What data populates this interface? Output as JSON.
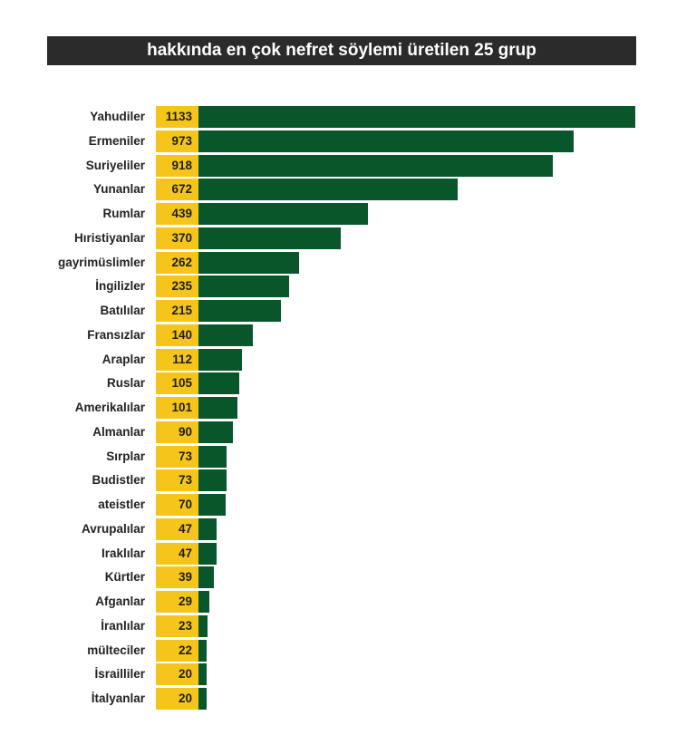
{
  "chart_data": {
    "type": "bar",
    "orientation": "horizontal",
    "title": "hakkında en çok nefret söylemi üretilen 25 grup",
    "categories": [
      "Yahudiler",
      "Ermeniler",
      "Suriyeliler",
      "Yunanlar",
      "Rumlar",
      "Hıristiyanlar",
      "gayrimüslimler",
      "İngilizler",
      "Batılılar",
      "Fransızlar",
      "Araplar",
      "Ruslar",
      "Amerikalılar",
      "Almanlar",
      "Sırplar",
      "Budistler",
      "ateistler",
      "Avrupalılar",
      "Iraklılar",
      "Kürtler",
      "Afganlar",
      "İranlılar",
      "mülteciler",
      "İsrailliler",
      "İtalyanlar"
    ],
    "values": [
      1133,
      973,
      918,
      672,
      439,
      370,
      262,
      235,
      215,
      140,
      112,
      105,
      101,
      90,
      73,
      73,
      70,
      47,
      47,
      39,
      29,
      23,
      22,
      20,
      20
    ],
    "xlim": [
      0,
      1133
    ],
    "colors": {
      "bar": "#0a562b",
      "label_box": "#f6c51b",
      "title_bg": "#2b2b2b"
    },
    "grid": false,
    "legend": "none"
  }
}
